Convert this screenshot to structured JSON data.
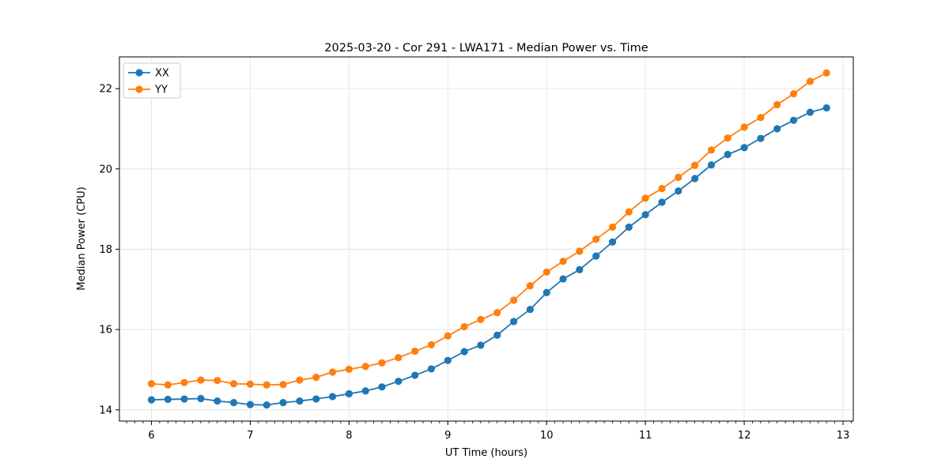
{
  "figure": {
    "background": "#ffffff",
    "plot_border_color": "#000000",
    "grid_color": "#e6e6e6"
  },
  "chart_data": {
    "type": "line",
    "title": "2025-03-20 - Cor 291 - LWA171 - Median Power vs. Time",
    "xlabel": "UT Time (hours)",
    "ylabel": "Median Power (CPU)",
    "xlim": [
      5.676,
      13.104
    ],
    "ylim": [
      13.72,
      22.79
    ],
    "xticks": [
      6,
      7,
      8,
      9,
      10,
      11,
      12,
      13
    ],
    "yticks": [
      14,
      16,
      18,
      20,
      22
    ],
    "minor_xtick_step": 0.08333,
    "grid": true,
    "legend_position": "upper left",
    "marker": "circle",
    "x": [
      6.0,
      6.167,
      6.333,
      6.5,
      6.667,
      6.833,
      7.0,
      7.167,
      7.333,
      7.5,
      7.667,
      7.833,
      8.0,
      8.167,
      8.333,
      8.5,
      8.667,
      8.833,
      9.0,
      9.167,
      9.333,
      9.5,
      9.667,
      9.833,
      10.0,
      10.167,
      10.333,
      10.5,
      10.667,
      10.833,
      11.0,
      11.167,
      11.333,
      11.5,
      11.667,
      11.833,
      12.0,
      12.167,
      12.333,
      12.5,
      12.667,
      12.833
    ],
    "series": [
      {
        "name": "XX",
        "color": "#1f77b4",
        "values": [
          14.25,
          14.26,
          14.27,
          14.28,
          14.22,
          14.18,
          14.13,
          14.12,
          14.18,
          14.22,
          14.27,
          14.33,
          14.4,
          14.47,
          14.57,
          14.71,
          14.86,
          15.02,
          15.23,
          15.45,
          15.61,
          15.86,
          16.2,
          16.5,
          16.92,
          17.26,
          17.49,
          17.83,
          18.18,
          18.55,
          18.86,
          19.17,
          19.45,
          19.76,
          20.1,
          20.36,
          20.53,
          20.76,
          21.0,
          21.21,
          21.41,
          21.52
        ]
      },
      {
        "name": "YY",
        "color": "#ff7f0e",
        "values": [
          14.65,
          14.62,
          14.68,
          14.74,
          14.73,
          14.65,
          14.64,
          14.62,
          14.63,
          14.74,
          14.81,
          14.94,
          15.01,
          15.08,
          15.17,
          15.3,
          15.46,
          15.62,
          15.84,
          16.07,
          16.25,
          16.42,
          16.73,
          17.09,
          17.43,
          17.7,
          17.95,
          18.25,
          18.55,
          18.93,
          19.27,
          19.51,
          19.79,
          20.09,
          20.47,
          20.77,
          21.04,
          21.28,
          21.6,
          21.87,
          22.18,
          22.39
        ]
      }
    ]
  }
}
